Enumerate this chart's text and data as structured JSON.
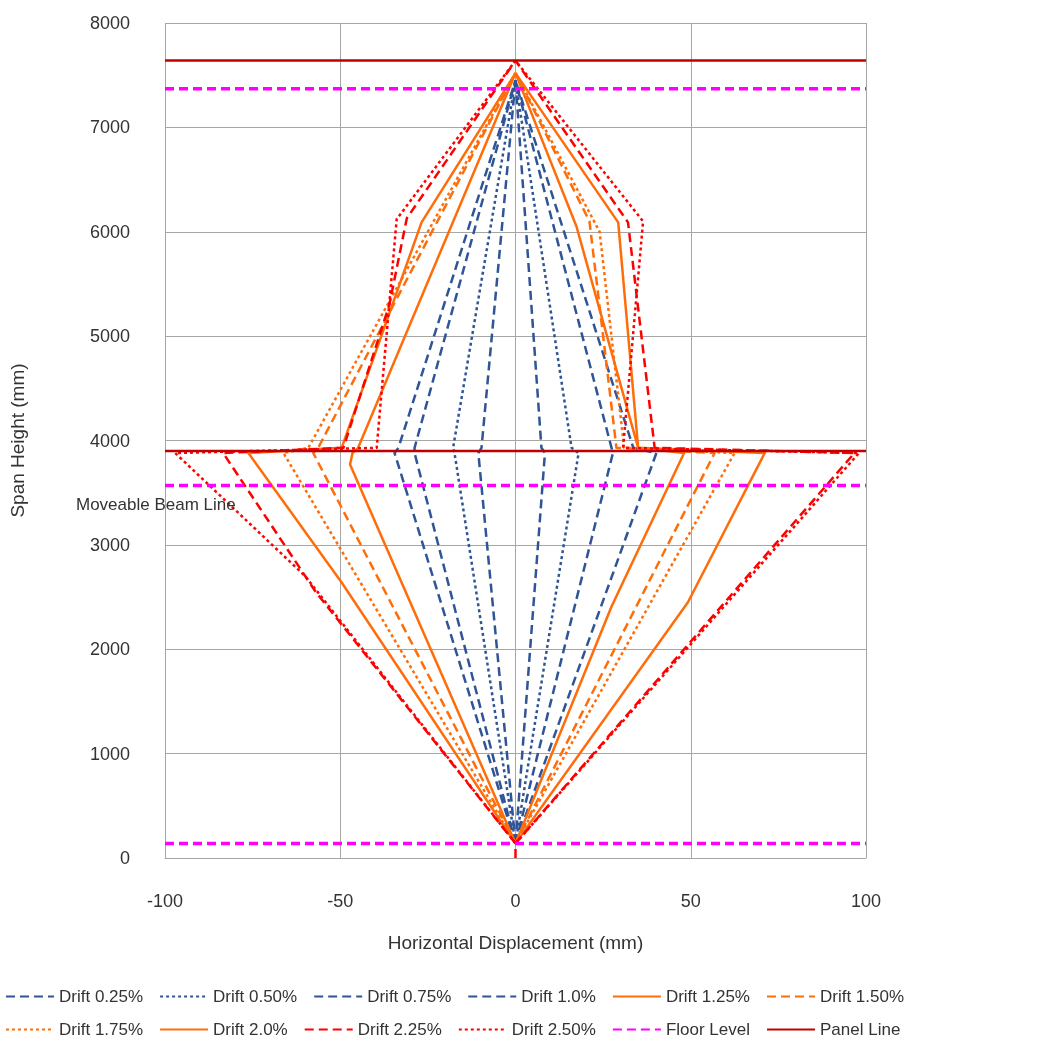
{
  "chart_data": {
    "type": "line",
    "xlabel": "Horizontal Displacement (mm)",
    "ylabel": "Span Height (mm)",
    "xlim": [
      -100,
      100
    ],
    "xticks": [
      -100,
      -50,
      0,
      50,
      100
    ],
    "ylim": [
      0,
      8000
    ],
    "yticks": [
      0,
      1000,
      2000,
      3000,
      4000,
      5000,
      6000,
      7000,
      8000
    ],
    "grid": true,
    "legend": "bottom",
    "marker": "none",
    "annotations": [
      "Moveable Beam Line"
    ],
    "series": [
      {
        "name": "Drift 0.25%",
        "color": "#2f5597",
        "line_style": "dashed",
        "x": [
          0,
          -10.6,
          -9.7,
          0
        ],
        "values": [
          140,
          3880,
          3930,
          7450
        ]
      },
      {
        "color": "#2f5597",
        "line_style": "dashed",
        "x": [
          0,
          8.4,
          7.4,
          0
        ],
        "values": [
          140,
          3880,
          3930,
          7450
        ]
      },
      {
        "name": "Drift 0.50%",
        "color": "#2f5597",
        "line_style": "dotted",
        "x": [
          0,
          -17.4,
          -17.8,
          0
        ],
        "values": [
          140,
          3880,
          3930,
          7450
        ]
      },
      {
        "color": "#2f5597",
        "line_style": "dotted",
        "x": [
          0,
          18,
          16,
          0
        ],
        "values": [
          140,
          3880,
          3930,
          7450
        ]
      },
      {
        "name": "Drift 0.75%",
        "color": "#2f5597",
        "line_style": "dashed",
        "x": [
          0,
          -28.8,
          -28.8,
          0
        ],
        "values": [
          140,
          3880,
          3930,
          7450
        ]
      },
      {
        "color": "#2f5597",
        "line_style": "dashed",
        "x": [
          0,
          27.8,
          27.4,
          0
        ],
        "values": [
          140,
          3880,
          3930,
          7450
        ]
      },
      {
        "name": "Drift 1.0%",
        "color": "#2f5597",
        "line_style": "dashed",
        "x": [
          0,
          -34.5,
          -33.4,
          0
        ],
        "values": [
          140,
          3880,
          3930,
          7450
        ]
      },
      {
        "color": "#2f5597",
        "line_style": "dashed",
        "x": [
          0,
          40.2,
          33.6,
          0
        ],
        "values": [
          140,
          3880,
          3930,
          7450
        ]
      },
      {
        "name": "Drift 1.25%",
        "color": "#ff6d0a",
        "line_style": "solid",
        "x": [
          0,
          -47.2,
          -46.5,
          -44.9,
          0
        ],
        "values": [
          140,
          3770,
          3880,
          3930,
          7520
        ]
      },
      {
        "color": "#ff6d0a",
        "line_style": "solid",
        "x": [
          0,
          27.4,
          48.1,
          35,
          17.4,
          0
        ],
        "values": [
          140,
          2410,
          3880,
          3930,
          6050,
          7520
        ]
      },
      {
        "name": "Drift 1.50%",
        "color": "#ff6d0a",
        "line_style": "dashed",
        "x": [
          0,
          -57.7,
          -56.3,
          0
        ],
        "values": [
          140,
          3880,
          3930,
          7520
        ]
      },
      {
        "color": "#ff6d0a",
        "line_style": "dashed",
        "x": [
          0,
          56.8,
          28.8,
          21.1,
          0
        ],
        "values": [
          140,
          3880,
          3930,
          6100,
          7520
        ]
      },
      {
        "name": "Drift 1.75%",
        "color": "#ff6d0a",
        "line_style": "dotted",
        "x": [
          0,
          -66.2,
          -59.1,
          0
        ],
        "values": [
          140,
          3880,
          3930,
          7520
        ]
      },
      {
        "color": "#ff6d0a",
        "line_style": "dotted",
        "x": [
          0,
          62.5,
          31,
          24,
          0
        ],
        "values": [
          140,
          3880,
          3930,
          6000,
          7520
        ]
      },
      {
        "name": "Drift 2.0%",
        "color": "#ff6d0a",
        "line_style": "solid",
        "x": [
          0,
          -49.6,
          -76.2,
          -49.6,
          -26.8,
          0
        ],
        "values": [
          140,
          2640,
          3880,
          3930,
          6090,
          7520
        ]
      },
      {
        "color": "#ff6d0a",
        "line_style": "solid",
        "x": [
          0,
          49.2,
          71.1,
          35,
          29.3,
          0
        ],
        "values": [
          140,
          2450,
          3880,
          3930,
          6090,
          7520
        ]
      },
      {
        "name": "Drift 2.25%",
        "color": "#ff0000",
        "line_style": "dashed",
        "x": [
          0,
          0,
          -57,
          -83.4,
          -49.1,
          -36,
          -31,
          0
        ],
        "values": [
          0,
          140,
          2550,
          3880,
          3930,
          5300,
          6130,
          7640
        ]
      },
      {
        "color": "#ff0000",
        "line_style": "dashed",
        "x": [
          0,
          96.7,
          39.7,
          32.1,
          0
        ],
        "values": [
          140,
          3880,
          3930,
          6090,
          7640
        ]
      },
      {
        "name": "Drift 2.50%",
        "color": "#ff0000",
        "line_style": "dotted",
        "x": [
          0,
          -60,
          -97.1,
          -39.6,
          -33.9,
          0
        ],
        "values": [
          140,
          2700,
          3880,
          3930,
          6120,
          7640
        ]
      },
      {
        "color": "#ff0000",
        "line_style": "dotted",
        "x": [
          0,
          98,
          30.7,
          36.4,
          0
        ],
        "values": [
          140,
          3880,
          3930,
          6100,
          7640
        ]
      },
      {
        "name": "Floor Level",
        "color": "#ff00ff",
        "line_style": "dashed",
        "x": [
          -100,
          100
        ],
        "values": [
          140,
          140
        ]
      },
      {
        "color": "#ff00ff",
        "line_style": "dashed",
        "x": [
          -100,
          100
        ],
        "values": [
          3570,
          3570
        ]
      },
      {
        "color": "#ff00ff",
        "line_style": "dashed",
        "x": [
          -100,
          100
        ],
        "values": [
          7370,
          7370
        ]
      },
      {
        "name": "Panel Line",
        "color": "#c00000",
        "line_style": "solid",
        "x": [
          -100,
          100
        ],
        "values": [
          3900,
          3900
        ]
      },
      {
        "color": "#c00000",
        "line_style": "solid",
        "x": [
          -100,
          100
        ],
        "values": [
          7640,
          7640
        ]
      }
    ]
  }
}
